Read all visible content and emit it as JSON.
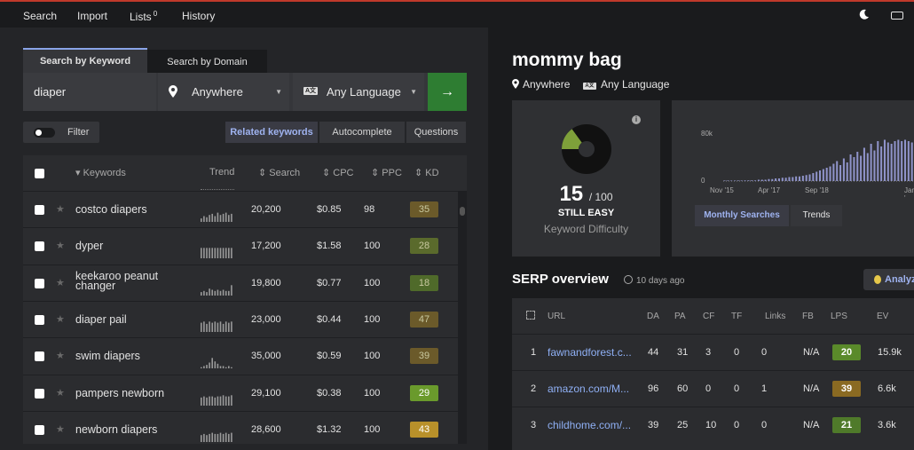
{
  "nav": {
    "search": "Search",
    "import": "Import",
    "lists": "Lists",
    "lists_count": "0",
    "history": "History"
  },
  "search_tabs": {
    "keyword": "Search by Keyword",
    "domain": "Search by Domain"
  },
  "search": {
    "query": "diaper",
    "location": "Anywhere",
    "language": "Any Language",
    "go_icon": "→"
  },
  "filter": {
    "label": "Filter"
  },
  "segments": {
    "related": "Related keywords",
    "autocomplete": "Autocomplete",
    "questions": "Questions"
  },
  "table": {
    "headers": {
      "keywords": "Keywords",
      "trend": "Trend",
      "search": "Search",
      "cpc": "CPC",
      "ppc": "PPC",
      "kd": "KD"
    },
    "rows": [
      {
        "keyword": "costco diapers",
        "search": "20,200",
        "cpc": "$0.85",
        "ppc": "98",
        "kd": "35",
        "kd_color": "#6b5a2a",
        "trend": [
          3,
          5,
          4,
          6,
          7,
          5,
          8,
          6,
          7,
          8,
          6,
          7
        ]
      },
      {
        "keyword": "dyper",
        "search": "17,200",
        "cpc": "$1.58",
        "ppc": "100",
        "kd": "28",
        "kd_color": "#5a6a2c",
        "trend": [
          9,
          9,
          9,
          9,
          9,
          9,
          9,
          9,
          9,
          9,
          9,
          9
        ]
      },
      {
        "keyword": "keekaroo peanut changer",
        "search": "19,800",
        "cpc": "$0.77",
        "ppc": "100",
        "kd": "18",
        "kd_color": "#4f6a2a",
        "trend": [
          3,
          4,
          3,
          6,
          5,
          4,
          5,
          4,
          5,
          4,
          4,
          9
        ]
      },
      {
        "keyword": "diaper pail",
        "search": "23,000",
        "cpc": "$0.44",
        "ppc": "100",
        "kd": "47",
        "kd_color": "#6b5a2a",
        "trend": [
          8,
          9,
          7,
          9,
          8,
          9,
          8,
          9,
          7,
          9,
          8,
          9
        ]
      },
      {
        "keyword": "swim diapers",
        "search": "35,000",
        "cpc": "$0.59",
        "ppc": "100",
        "kd": "39",
        "kd_color": "#6b5a2a",
        "trend": [
          1,
          2,
          3,
          5,
          9,
          6,
          4,
          2,
          2,
          1,
          2,
          1
        ]
      },
      {
        "keyword": "pampers newborn",
        "search": "29,100",
        "cpc": "$0.38",
        "ppc": "100",
        "kd": "29",
        "kd_color": "#6a9a2c",
        "trend": [
          7,
          8,
          7,
          8,
          8,
          7,
          8,
          8,
          9,
          8,
          8,
          9
        ]
      },
      {
        "keyword": "newborn diapers",
        "search": "28,600",
        "cpc": "$1.32",
        "ppc": "100",
        "kd": "43",
        "kd_color": "#b8902a",
        "trend": [
          6,
          7,
          6,
          7,
          8,
          7,
          7,
          8,
          7,
          8,
          7,
          8
        ]
      }
    ]
  },
  "detail": {
    "title": "mommy bag",
    "location": "Anywhere",
    "language": "Any Language",
    "kd_value": "15",
    "kd_max": "/ 100",
    "kd_fraction": 0.15,
    "kd_status": "STILL EASY",
    "kd_caption": "Keyword Difficulty",
    "info_icon": "i",
    "trend_ylabels": {
      "top": "80k",
      "bottom": "0"
    },
    "trend_xlabels": [
      "Nov '15",
      "Apr '17",
      "Sep '18",
      "Jan '"
    ],
    "trend_values": [
      0,
      0,
      0,
      0,
      0,
      0,
      1,
      1,
      1,
      1,
      2,
      2,
      2,
      3,
      3,
      4,
      4,
      5,
      5,
      6,
      6,
      7,
      7,
      8,
      9,
      10,
      12,
      14,
      16,
      18,
      20,
      22,
      26,
      30,
      24,
      34,
      28,
      40,
      36,
      44,
      38,
      50,
      42,
      56,
      46,
      60,
      52,
      62,
      58,
      56,
      60,
      62,
      60,
      62,
      60,
      58
    ],
    "trend_tab_monthly": "Monthly Searches",
    "trend_tab_trends": "Trends"
  },
  "serp": {
    "title": "SERP overview",
    "time": "10 days ago",
    "analyze": "Analyz",
    "headers": {
      "url": "URL",
      "da": "DA",
      "pa": "PA",
      "cf": "CF",
      "tf": "TF",
      "links": "Links",
      "fb": "FB",
      "lps": "LPS",
      "ev": "EV"
    },
    "rows": [
      {
        "n": "1",
        "url": "fawnandforest.c...",
        "da": "44",
        "pa": "31",
        "cf": "3",
        "tf": "0",
        "links": "0",
        "fb": "N/A",
        "lps": "20",
        "lps_color": "#5a8a2a",
        "ev": "15.9k"
      },
      {
        "n": "2",
        "url": "amazon.com/M...",
        "da": "96",
        "pa": "60",
        "cf": "0",
        "tf": "0",
        "links": "1",
        "fb": "N/A",
        "lps": "39",
        "lps_color": "#8a6a22",
        "ev": "6.6k"
      },
      {
        "n": "3",
        "url": "childhome.com/...",
        "da": "39",
        "pa": "25",
        "cf": "10",
        "tf": "0",
        "links": "0",
        "fb": "N/A",
        "lps": "21",
        "lps_color": "#4f7a2a",
        "ev": "3.6k"
      }
    ]
  },
  "colors": {
    "accent_blue": "#9fb3f0",
    "go_green": "#2e7d32",
    "donut_fill": "#7ea03a"
  }
}
